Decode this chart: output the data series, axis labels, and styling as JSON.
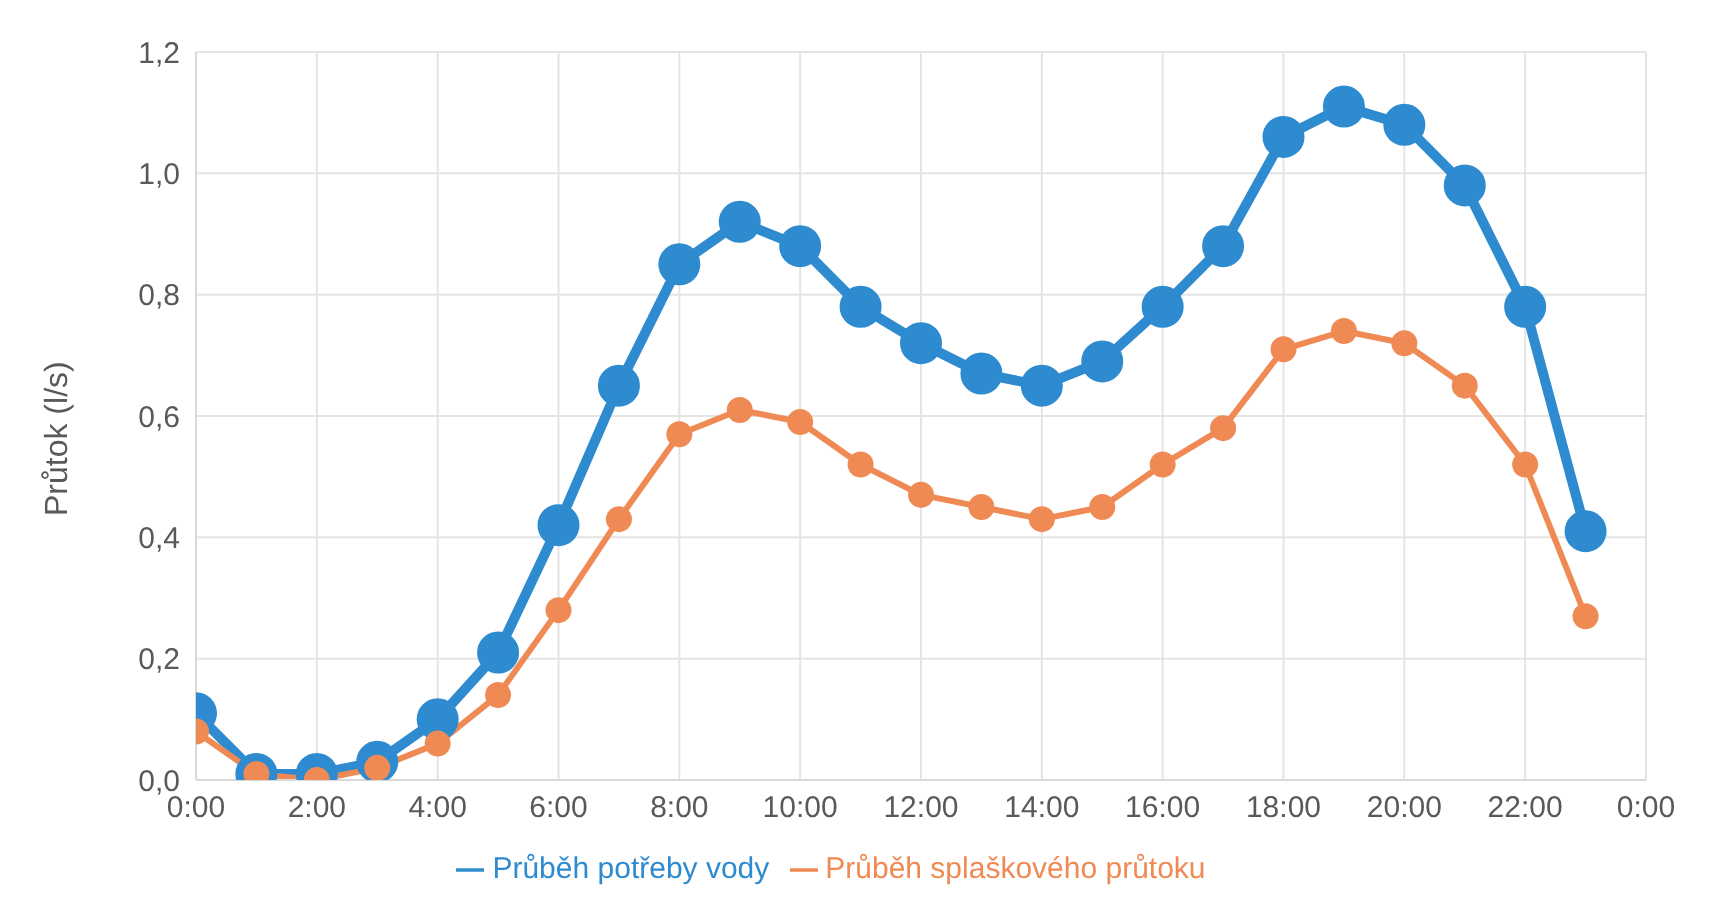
{
  "chart_data": {
    "type": "line",
    "ylabel": "Průtok (l/s)",
    "x": [
      0,
      1,
      2,
      3,
      4,
      5,
      6,
      7,
      8,
      9,
      10,
      11,
      12,
      13,
      14,
      15,
      16,
      17,
      18,
      19,
      20,
      21,
      22,
      23
    ],
    "series": [
      {
        "name": "Průběh potřeby vody",
        "color": "#2e8bd0",
        "values": [
          0.11,
          0.01,
          0.01,
          0.03,
          0.1,
          0.21,
          0.42,
          0.65,
          0.85,
          0.92,
          0.88,
          0.78,
          0.72,
          0.67,
          0.65,
          0.69,
          0.78,
          0.88,
          1.06,
          1.11,
          1.08,
          0.98,
          0.78,
          0.41
        ]
      },
      {
        "name": "Průběh splaškového průtoku",
        "color": "#f08a55",
        "values": [
          0.08,
          0.01,
          0.0,
          0.02,
          0.06,
          0.14,
          0.28,
          0.43,
          0.57,
          0.61,
          0.59,
          0.52,
          0.47,
          0.45,
          0.43,
          0.45,
          0.52,
          0.58,
          0.71,
          0.74,
          0.72,
          0.65,
          0.52,
          0.27
        ]
      }
    ],
    "xlim": [
      0,
      24
    ],
    "xticks": [
      {
        "value": 0,
        "label": "0:00"
      },
      {
        "value": 2,
        "label": "2:00"
      },
      {
        "value": 4,
        "label": "4:00"
      },
      {
        "value": 6,
        "label": "6:00"
      },
      {
        "value": 8,
        "label": "8:00"
      },
      {
        "value": 10,
        "label": "10:00"
      },
      {
        "value": 12,
        "label": "12:00"
      },
      {
        "value": 14,
        "label": "14:00"
      },
      {
        "value": 16,
        "label": "16:00"
      },
      {
        "value": 18,
        "label": "18:00"
      },
      {
        "value": 20,
        "label": "20:00"
      },
      {
        "value": 22,
        "label": "22:00"
      },
      {
        "value": 24,
        "label": "0:00"
      }
    ],
    "ylim": [
      0,
      1.2
    ],
    "yticks": [
      {
        "value": 0,
        "label": "0,0"
      },
      {
        "value": 0.2,
        "label": "0,2"
      },
      {
        "value": 0.4,
        "label": "0,4"
      },
      {
        "value": 0.6,
        "label": "0,6"
      },
      {
        "value": 0.8,
        "label": "0,8"
      },
      {
        "value": 1.0,
        "label": "1,0"
      },
      {
        "value": 1.2,
        "label": "1,2"
      }
    ],
    "grid": true,
    "legend": "bottom",
    "marker": "circle",
    "line_style": "solid"
  }
}
